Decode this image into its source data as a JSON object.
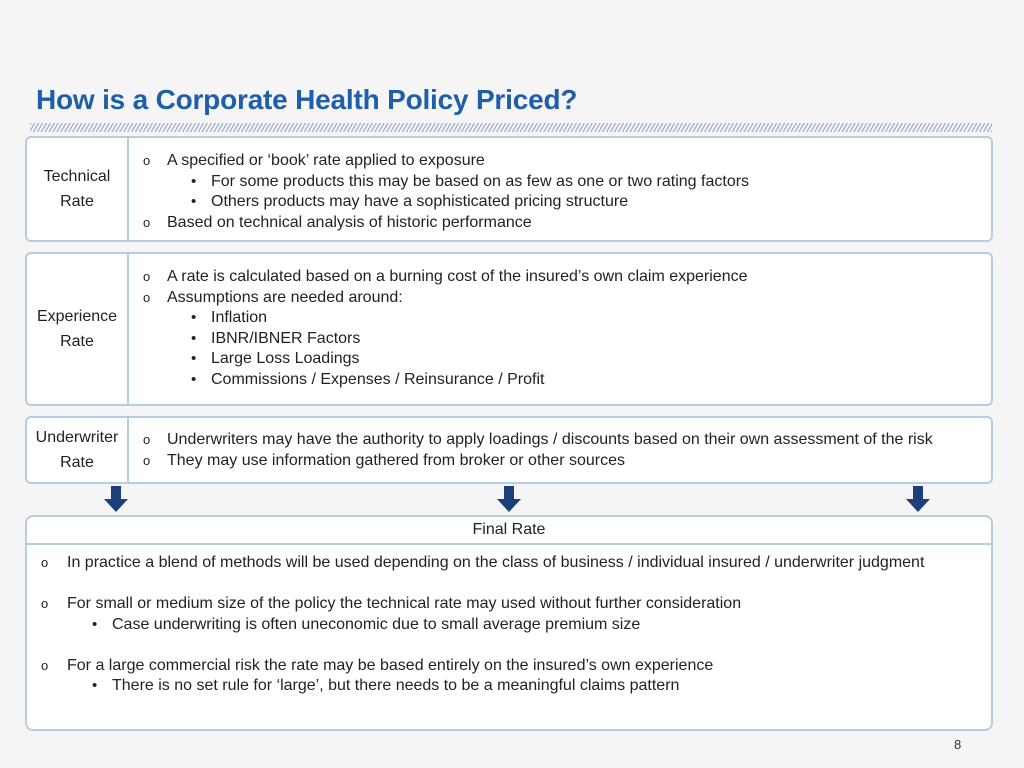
{
  "title": "How is a Corporate Health Policy Priced?",
  "sections": {
    "technical": {
      "label": [
        "Technical",
        "Rate"
      ],
      "items": [
        "A specified or ‘book’ rate applied to exposure",
        "For some products this may be based on as few as one or two rating factors",
        "Others products may have a sophisticated pricing structure",
        "Based on technical analysis of historic performance"
      ]
    },
    "experience": {
      "label": [
        "Experience",
        "Rate"
      ],
      "items": [
        "A rate is calculated based on a burning cost of the insured’s own claim experience",
        "Assumptions are needed around:",
        "Inflation",
        "IBNR/IBNER Factors",
        "Large Loss Loadings",
        "Commissions / Expenses / Reinsurance / Profit"
      ]
    },
    "underwriter": {
      "label": [
        "Underwriter",
        "Rate"
      ],
      "items": [
        "Underwriters may have the authority to apply loadings / discounts based on their own assessment of the risk",
        "They may use information gathered from broker or other sources"
      ]
    }
  },
  "final": {
    "heading": "Final Rate",
    "items": [
      "In practice a blend of methods will be used depending on the class of business / individual insured / underwriter judgment",
      "For small or medium size of the policy the technical rate may used without further consideration",
      "Case underwriting is often uneconomic due to small average premium size",
      "For a large commercial risk the rate may be based entirely on the insured’s own experience",
      "There is no set rule for ‘large’, but there needs to be a meaningful claims pattern"
    ]
  },
  "markers": {
    "circle": "o",
    "bullet": "•"
  },
  "page_number": "8",
  "colors": {
    "title": "#1f5ea8",
    "border": "#b8cde2",
    "arrow": "#1b3f7a"
  }
}
